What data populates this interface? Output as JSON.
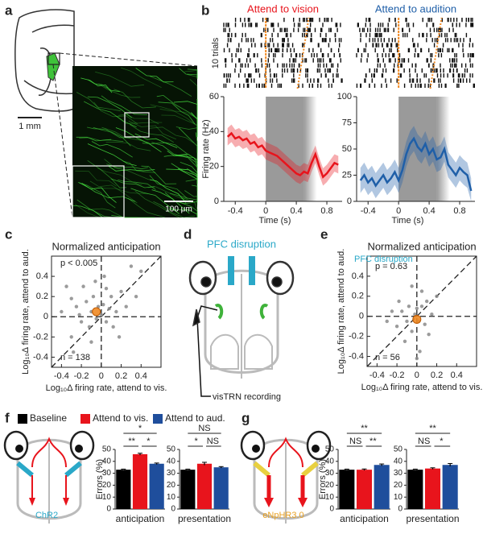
{
  "panel_labels": [
    "a",
    "b",
    "c",
    "d",
    "e",
    "f",
    "g"
  ],
  "panel_a": {
    "scale_bars": [
      "1 mm",
      "100 μm"
    ]
  },
  "panel_d": {
    "title": "PFC disruption",
    "recording": "visTRN recording"
  },
  "panel_f": {
    "opsin": "ChR2"
  },
  "panel_g": {
    "opsin": "eNpHR3.0"
  },
  "chart_data": [
    {
      "type": "line",
      "title": "Attend to vision",
      "raster_label": "10 trials",
      "ylabel": "Firing rate (Hz)",
      "xlabel": "Time (s)",
      "x": [
        -0.5,
        -0.45,
        -0.4,
        -0.35,
        -0.3,
        -0.25,
        -0.2,
        -0.15,
        -0.1,
        -0.05,
        0,
        0.05,
        0.1,
        0.15,
        0.2,
        0.25,
        0.3,
        0.35,
        0.4,
        0.45,
        0.5,
        0.55,
        0.6,
        0.65,
        0.7,
        0.75,
        0.8,
        0.85,
        0.9,
        0.95
      ],
      "series": [
        {
          "color": "#e8141c",
          "values": [
            37,
            39,
            36,
            37,
            35,
            36,
            33,
            34,
            31,
            32,
            29,
            28,
            27,
            26,
            24,
            22,
            20,
            18,
            16,
            15,
            17,
            16,
            22,
            27,
            20,
            14,
            16,
            19,
            22,
            21
          ],
          "upper": [
            42,
            44,
            41,
            42,
            40,
            41,
            38,
            39,
            36,
            37,
            34,
            33,
            32,
            31,
            29,
            27,
            25,
            23,
            21,
            20,
            22,
            21,
            27,
            32,
            25,
            19,
            21,
            24,
            27,
            26
          ],
          "lower": [
            32,
            34,
            31,
            32,
            30,
            31,
            28,
            29,
            26,
            27,
            24,
            23,
            22,
            21,
            19,
            17,
            15,
            13,
            11,
            10,
            12,
            11,
            17,
            22,
            15,
            9,
            11,
            14,
            17,
            16
          ]
        }
      ],
      "shade": [
        0,
        0.5
      ],
      "xlim": [
        -0.55,
        1.0
      ],
      "ylim": [
        0,
        60
      ],
      "xticks": [
        -0.4,
        0,
        0.4,
        0.8
      ],
      "yticks": [
        0,
        20,
        40,
        60
      ]
    },
    {
      "type": "line",
      "title": "Attend to audition",
      "xlabel": "Time (s)",
      "x": [
        -0.5,
        -0.45,
        -0.4,
        -0.35,
        -0.3,
        -0.25,
        -0.2,
        -0.15,
        -0.1,
        -0.05,
        0,
        0.05,
        0.1,
        0.15,
        0.2,
        0.25,
        0.3,
        0.35,
        0.4,
        0.45,
        0.5,
        0.55,
        0.6,
        0.65,
        0.7,
        0.75,
        0.8,
        0.85,
        0.9,
        0.95
      ],
      "series": [
        {
          "color": "#1f5fa8",
          "values": [
            20,
            25,
            18,
            22,
            15,
            20,
            25,
            18,
            22,
            28,
            20,
            30,
            45,
            55,
            60,
            52,
            48,
            55,
            45,
            50,
            40,
            42,
            50,
            35,
            30,
            25,
            32,
            28,
            25,
            10
          ],
          "upper": [
            32,
            37,
            30,
            34,
            27,
            32,
            37,
            30,
            34,
            40,
            32,
            42,
            57,
            67,
            72,
            64,
            60,
            67,
            57,
            62,
            52,
            54,
            62,
            47,
            42,
            37,
            44,
            40,
            37,
            22
          ],
          "lower": [
            8,
            13,
            6,
            10,
            3,
            8,
            13,
            6,
            10,
            16,
            8,
            18,
            33,
            43,
            48,
            40,
            36,
            43,
            33,
            38,
            28,
            30,
            38,
            23,
            18,
            13,
            20,
            16,
            13,
            0
          ]
        }
      ],
      "shade": [
        0,
        0.5
      ],
      "xlim": [
        -0.55,
        1.0
      ],
      "ylim": [
        0,
        100
      ],
      "xticks": [
        -0.4,
        0,
        0.4,
        0.8
      ],
      "yticks": [
        0,
        25,
        50,
        75,
        100
      ]
    },
    {
      "type": "scatter",
      "title": "Normalized anticipation",
      "annotations": [
        "p < 0.005",
        "n = 138"
      ],
      "xlabel": "Log₁₀Δ firing rate, attend to vis.",
      "ylabel": "Log₁₀Δ firing rate, attend to aud.",
      "series": [
        {
          "color": "#8a8a8a",
          "x": [
            -0.3,
            -0.25,
            -0.2,
            -0.15,
            -0.12,
            -0.1,
            -0.08,
            -0.05,
            -0.03,
            0,
            0.02,
            0.05,
            0.08,
            0.1,
            0.12,
            0.15,
            0.2,
            0.25,
            -0.35,
            -0.28,
            -0.18,
            -0.06,
            0.03,
            0.3,
            0.35,
            -0.4,
            -0.22,
            0.18,
            -0.1,
            0.05,
            0.4,
            -0.3
          ],
          "y": [
            -0.2,
            0.1,
            -0.05,
            0.15,
            -0.1,
            0.05,
            0.2,
            -0.02,
            0.1,
            0.02,
            0.12,
            -0.05,
            0.08,
            0.2,
            -0.1,
            0.05,
            0.25,
            0.1,
            0.3,
            -0.35,
            0.3,
            0.35,
            0.4,
            0.5,
            0.2,
            0.05,
            0.02,
            -0.2,
            -0.25,
            0.28,
            0.45,
            0.18
          ]
        },
        {
          "color": "#f08a24",
          "x": [
            -0.05
          ],
          "y": [
            0.05
          ]
        }
      ],
      "xlim": [
        -0.5,
        0.6
      ],
      "ylim": [
        -0.5,
        0.6
      ],
      "xticks": [
        -0.4,
        -0.2,
        0,
        0.2,
        0.4
      ],
      "yticks": [
        -0.4,
        -0.2,
        0,
        0.2,
        0.4
      ]
    },
    {
      "type": "scatter",
      "title": "Normalized anticipation",
      "annotations": [
        "PFC disruption",
        "p = 0.63",
        "n = 56"
      ],
      "xlabel": "Log₁₀Δ firing rate, attend to vis.",
      "ylabel": "Log₁₀Δ firing rate, attend to aud.",
      "series": [
        {
          "color": "#8a8a8a",
          "x": [
            -0.2,
            -0.15,
            -0.1,
            -0.08,
            -0.05,
            -0.02,
            0,
            0.02,
            0.05,
            0.08,
            0.1,
            -0.12,
            0.03,
            -0.25,
            0.15,
            -0.05,
            0.2,
            0.12,
            -0.3,
            0.05,
            0,
            -0.18
          ],
          "y": [
            -0.1,
            0.05,
            -0.05,
            0.1,
            -0.15,
            0.02,
            0.08,
            -0.05,
            0.1,
            -0.08,
            0.15,
            -0.25,
            -0.35,
            0.05,
            0.02,
            0.3,
            0.2,
            -0.18,
            -0.05,
            0.25,
            -0.42,
            0.15
          ]
        },
        {
          "color": "#f08a24",
          "x": [
            0
          ],
          "y": [
            -0.03
          ]
        }
      ],
      "xlim": [
        -0.5,
        0.6
      ],
      "ylim": [
        -0.5,
        0.6
      ],
      "xticks": [
        -0.4,
        -0.2,
        0,
        0.2,
        0.4
      ],
      "yticks": [
        -0.4,
        -0.2,
        0,
        0.2,
        0.4
      ]
    },
    {
      "type": "bar",
      "ylabel": "Errors (%)",
      "categories": [
        "anticipation",
        "presentation"
      ],
      "series": [
        {
          "name": "Baseline",
          "color": "#000000",
          "values": [
            33,
            33
          ],
          "errors": [
            0.5,
            0.5
          ]
        },
        {
          "name": "Attend to vis.",
          "color": "#e8141c",
          "values": [
            46,
            38
          ],
          "errors": [
            0.8,
            1.2
          ]
        },
        {
          "name": "Attend to aud.",
          "color": "#1f4e9c",
          "values": [
            38,
            35
          ],
          "errors": [
            0.6,
            0.6
          ]
        }
      ],
      "significance": [
        [
          "**",
          "*",
          "*"
        ],
        [
          "*",
          "NS",
          "NS"
        ]
      ],
      "ylim": [
        0,
        50
      ],
      "yticks": [
        0,
        10,
        20,
        30,
        40,
        50
      ]
    },
    {
      "type": "bar",
      "ylabel": "Errors (%)",
      "categories": [
        "anticipation",
        "presentation"
      ],
      "series": [
        {
          "color": "#000000",
          "values": [
            33,
            33
          ],
          "errors": [
            0.5,
            0.5
          ]
        },
        {
          "color": "#e8141c",
          "values": [
            33,
            34
          ],
          "errors": [
            0.6,
            0.6
          ]
        },
        {
          "color": "#1f4e9c",
          "values": [
            37,
            37
          ],
          "errors": [
            0.8,
            1.2
          ]
        }
      ],
      "significance": [
        [
          "NS",
          "**",
          "**"
        ],
        [
          "NS",
          "*",
          "**"
        ]
      ],
      "ylim": [
        0,
        50
      ],
      "yticks": [
        0,
        10,
        20,
        30,
        40,
        50
      ]
    }
  ]
}
